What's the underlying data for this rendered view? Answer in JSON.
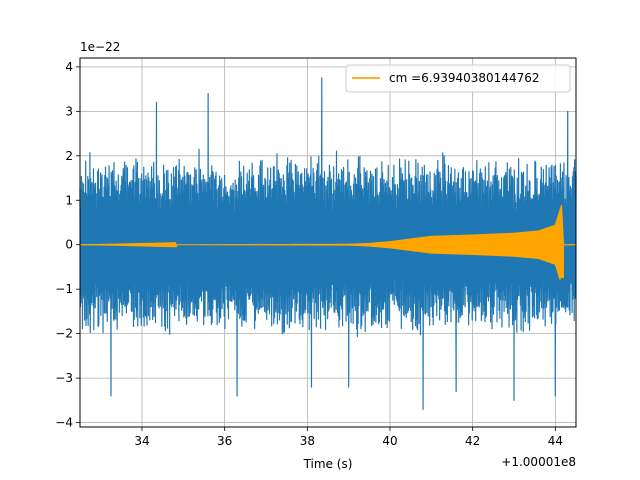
{
  "chart_data": {
    "type": "line",
    "xlabel": "Time (s)",
    "x_offset_label": "+1.00001e8",
    "y_scale_label": "1e−22",
    "xlim": [
      32.5,
      44.5
    ],
    "ylim": [
      -4.1,
      4.2
    ],
    "x_ticks": [
      34,
      36,
      38,
      40,
      42,
      44
    ],
    "y_ticks": [
      -4,
      -3,
      -2,
      -1,
      0,
      1,
      2,
      3,
      4
    ],
    "grid": true,
    "legend_position": "top-right",
    "series": [
      {
        "color": "#1f77b4",
        "kind": "noisy strain data",
        "x_range": [
          32.5,
          44.5
        ],
        "typical_envelope": 1.8,
        "notable_peaks": [
          {
            "x": 33.25,
            "y": -3.4
          },
          {
            "x": 34.35,
            "y": 3.2
          },
          {
            "x": 35.6,
            "y": 3.4
          },
          {
            "x": 36.3,
            "y": -3.4
          },
          {
            "x": 38.1,
            "y": -3.2
          },
          {
            "x": 38.35,
            "y": 3.75
          },
          {
            "x": 39.0,
            "y": -3.2
          },
          {
            "x": 40.8,
            "y": -3.7
          },
          {
            "x": 41.6,
            "y": -3.3
          },
          {
            "x": 43.0,
            "y": -3.5
          },
          {
            "x": 44.0,
            "y": -3.4
          },
          {
            "x": 44.3,
            "y": 3.0
          }
        ]
      },
      {
        "name": "cm =6.93940380144762",
        "color": "#ffa500",
        "kind": "chirp template",
        "points": [
          {
            "x": 32.5,
            "y": 0.0
          },
          {
            "x": 39.0,
            "y": 0.02
          },
          {
            "x": 39.5,
            "y": 0.04
          },
          {
            "x": 40.0,
            "y": 0.08
          },
          {
            "x": 40.5,
            "y": 0.14
          },
          {
            "x": 41.0,
            "y": 0.2
          },
          {
            "x": 42.0,
            "y": 0.23
          },
          {
            "x": 43.0,
            "y": 0.27
          },
          {
            "x": 43.6,
            "y": 0.32
          },
          {
            "x": 44.0,
            "y": 0.45
          },
          {
            "x": 44.15,
            "y": 0.9
          },
          {
            "x": 44.2,
            "y": 0.0
          },
          {
            "x": 44.5,
            "y": 0.0
          }
        ]
      }
    ]
  }
}
